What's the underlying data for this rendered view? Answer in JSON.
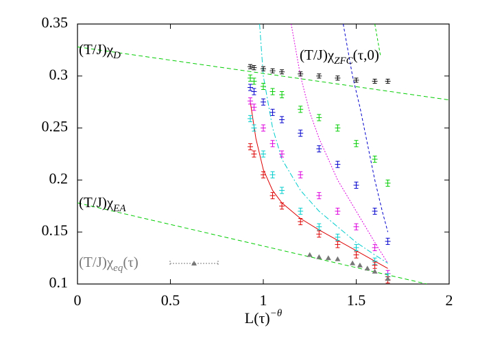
{
  "chart_data": {
    "type": "scatter",
    "xlabel": {
      "base": "L(τ)",
      "sup": "−θ"
    },
    "xlim": [
      0,
      2
    ],
    "xticks": [
      0,
      0.5,
      1,
      1.5,
      2
    ],
    "ylim": [
      0.1,
      0.35
    ],
    "yticks": [
      0.1,
      0.15,
      0.2,
      0.25,
      0.3,
      0.35
    ],
    "legend": "lower left",
    "x": [
      0.93,
      0.95,
      1.0,
      1.05,
      1.1,
      1.2,
      1.3,
      1.4,
      1.5,
      1.6,
      1.67
    ],
    "series": [
      {
        "color": "#000000",
        "values": [
          0.309,
          0.308,
          0.307,
          0.305,
          0.304,
          0.302,
          0.3,
          0.298,
          0.296,
          0.295,
          0.295
        ],
        "errors": [
          0.002,
          0.002,
          0.002,
          0.002,
          0.002,
          0.002,
          0.002,
          0.002,
          0.002,
          0.002,
          0.002
        ]
      },
      {
        "color": "#00cc00",
        "values": [
          0.298,
          0.295,
          0.29,
          0.285,
          0.282,
          0.268,
          0.26,
          0.25,
          0.235,
          0.22,
          0.197
        ],
        "errors": [
          0.003,
          0.003,
          0.003,
          0.003,
          0.003,
          0.003,
          0.003,
          0.003,
          0.003,
          0.003,
          0.003
        ]
      },
      {
        "color": "#0000cc",
        "values": [
          0.289,
          0.285,
          0.275,
          0.265,
          0.258,
          0.245,
          0.23,
          0.215,
          0.195,
          0.17,
          0.141
        ],
        "errors": [
          0.003,
          0.003,
          0.003,
          0.003,
          0.003,
          0.003,
          0.003,
          0.003,
          0.003,
          0.003,
          0.003
        ]
      },
      {
        "color": "#dd00dd",
        "values": [
          0.276,
          0.27,
          0.25,
          0.235,
          0.225,
          0.205,
          0.185,
          0.17,
          0.155,
          0.135,
          0.11
        ],
        "errors": [
          0.003,
          0.003,
          0.003,
          0.003,
          0.003,
          0.003,
          0.003,
          0.003,
          0.003,
          0.003,
          0.003
        ]
      },
      {
        "color": "#00cccc",
        "values": [
          0.259,
          0.25,
          0.225,
          0.205,
          0.19,
          0.17,
          0.155,
          0.145,
          0.135,
          0.122,
          0.107
        ],
        "errors": [
          0.003,
          0.003,
          0.003,
          0.003,
          0.003,
          0.003,
          0.003,
          0.003,
          0.003,
          0.003,
          0.003
        ]
      },
      {
        "color": "#dd0000",
        "values": [
          0.232,
          0.225,
          0.205,
          0.185,
          0.175,
          0.16,
          0.148,
          0.138,
          0.128,
          0.118,
          0.104
        ],
        "errors": [
          0.003,
          0.003,
          0.003,
          0.003,
          0.003,
          0.003,
          0.003,
          0.003,
          0.003,
          0.003,
          0.003
        ]
      }
    ],
    "eq_series": {
      "name": {
        "base": "(T/J)χ",
        "sub": "eq",
        "tail": "(τ)"
      },
      "color": "#777777",
      "x": [
        1.25,
        1.3,
        1.35,
        1.4,
        1.48,
        1.52,
        1.56,
        1.6,
        1.67
      ],
      "values": [
        0.128,
        0.126,
        0.125,
        0.124,
        0.12,
        0.118,
        0.115,
        0.112,
        0.105
      ]
    },
    "curves": [
      {
        "color": "#00cc00",
        "dash": "6 4",
        "x": [
          0,
          2
        ],
        "values": [
          0.328,
          0.277
        ]
      },
      {
        "color": "#00cc00",
        "dash": "6 4",
        "x": [
          0,
          1.88
        ],
        "values": [
          0.178,
          0.1
        ]
      },
      {
        "color": "#dd0000",
        "dash": "none",
        "x": [
          0.93,
          0.96,
          1.0,
          1.05,
          1.1,
          1.2,
          1.3,
          1.4,
          1.5,
          1.6,
          1.67
        ],
        "values": [
          0.275,
          0.24,
          0.21,
          0.19,
          0.178,
          0.163,
          0.152,
          0.142,
          0.132,
          0.122,
          0.115
        ]
      },
      {
        "color": "#00cccc",
        "dash": "8 3 2 3",
        "x": [
          0.98,
          1.0,
          1.05,
          1.1,
          1.2,
          1.3,
          1.4,
          1.5,
          1.6,
          1.67
        ],
        "values": [
          0.35,
          0.3,
          0.25,
          0.22,
          0.19,
          0.17,
          0.155,
          0.14,
          0.128,
          0.12
        ]
      },
      {
        "color": "#dd00dd",
        "dash": "2 2",
        "x": [
          1.15,
          1.2,
          1.25,
          1.3,
          1.4,
          1.5,
          1.6,
          1.67
        ],
        "values": [
          0.35,
          0.3,
          0.265,
          0.24,
          0.2,
          0.17,
          0.14,
          0.12
        ]
      },
      {
        "color": "#0000cc",
        "dash": "4 3",
        "x": [
          1.43,
          1.48,
          1.52,
          1.56,
          1.6,
          1.64,
          1.67
        ],
        "values": [
          0.35,
          0.3,
          0.27,
          0.235,
          0.2,
          0.17,
          0.15
        ]
      },
      {
        "color": "#00cc00",
        "dash": "4 3",
        "x": [
          1.6,
          1.63
        ],
        "values": [
          0.35,
          0.32
        ]
      }
    ],
    "annotations": [
      {
        "base": "(T/J)χ",
        "sub": "D"
      },
      {
        "base": "(T/J)χ",
        "sub": "EA"
      },
      {
        "base": "(T/J)χ",
        "sub": "ZFC",
        "tail": "(τ,0)"
      }
    ]
  }
}
